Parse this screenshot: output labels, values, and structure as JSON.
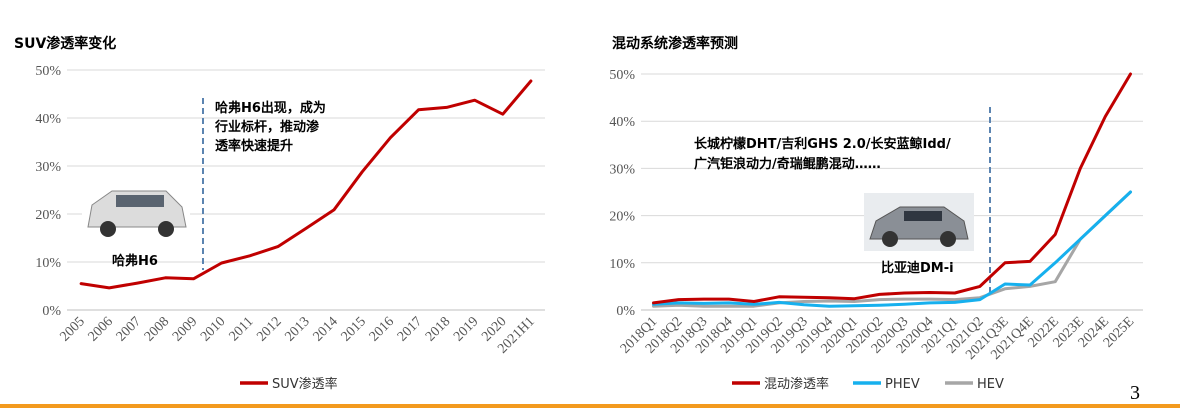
{
  "page_number": "3",
  "colors": {
    "red": "#c00000",
    "blue": "#16b0ee",
    "gray": "#a6a6a6",
    "dash": "#5b84b1",
    "rule": "#f39a1e"
  },
  "chart_data": [
    {
      "type": "line",
      "title": "SUV渗透率变化",
      "xlabel": "",
      "ylabel": "",
      "ylim": [
        0,
        50
      ],
      "yticks": [
        "0%",
        "10%",
        "20%",
        "30%",
        "40%",
        "50%"
      ],
      "categories": [
        "2005",
        "2006",
        "2007",
        "2008",
        "2009",
        "2010",
        "2011",
        "2012",
        "2013",
        "2014",
        "2015",
        "2016",
        "2017",
        "2018",
        "2019",
        "2020",
        "2021H1"
      ],
      "series": [
        {
          "name": "SUV渗透率",
          "color": "#c00000",
          "values": [
            5.5,
            4.6,
            5.6,
            6.7,
            6.5,
            9.8,
            11.3,
            13.2,
            17.0,
            20.9,
            28.8,
            35.9,
            41.7,
            42.2,
            43.7,
            40.8,
            47.7
          ]
        }
      ],
      "annotation": {
        "lines": [
          "哈弗H6出现，成为",
          "行业标杆，推动渗",
          "透率快速提升"
        ]
      },
      "image_label": "哈弗H6",
      "grid": true,
      "legend": "bottom"
    },
    {
      "type": "line",
      "title": "混动系统渗透率预测",
      "xlabel": "",
      "ylabel": "",
      "ylim": [
        0,
        50
      ],
      "yticks": [
        "0%",
        "10%",
        "20%",
        "30%",
        "40%",
        "50%"
      ],
      "categories": [
        "2018Q1",
        "2018Q2",
        "2018Q3",
        "2018Q4",
        "2019Q1",
        "2019Q2",
        "2019Q3",
        "2019Q4",
        "2020Q1",
        "2020Q2",
        "2020Q3",
        "2020Q4",
        "2021Q1",
        "2021Q2",
        "2021Q3E",
        "2021Q4E",
        "2022E",
        "2023E",
        "2024E",
        "2025E"
      ],
      "series": [
        {
          "name": "混动渗透率",
          "color": "#c00000",
          "values": [
            1.5,
            2.2,
            2.3,
            2.3,
            1.8,
            2.8,
            2.7,
            2.6,
            2.4,
            3.3,
            3.6,
            3.7,
            3.6,
            5.0,
            10.0,
            10.3,
            16.0,
            30.0,
            41.0,
            50.0
          ]
        },
        {
          "name": "PHEV",
          "color": "#16b0ee",
          "values": [
            1.2,
            1.5,
            1.4,
            1.5,
            1.2,
            1.6,
            1.1,
            0.8,
            0.9,
            1.0,
            1.2,
            1.5,
            1.6,
            2.2,
            5.5,
            5.3,
            10.0,
            15.0,
            20.0,
            25.0
          ]
        },
        {
          "name": "HEV",
          "color": "#a6a6a6",
          "values": [
            0.8,
            1.0,
            0.8,
            0.8,
            0.8,
            1.5,
            1.8,
            1.9,
            1.8,
            2.2,
            2.3,
            2.3,
            2.2,
            2.6,
            4.5,
            5.0,
            6.0,
            15.0,
            20.0,
            25.0
          ]
        }
      ],
      "annotation": {
        "lines": [
          "长城柠檬DHT/吉利GHS 2.0/长安蓝鲸Idd/",
          "广汽钜浪动力/奇瑞鲲鹏混动……"
        ]
      },
      "image_label": "比亚迪DM-i",
      "grid": true,
      "legend": "bottom"
    }
  ]
}
